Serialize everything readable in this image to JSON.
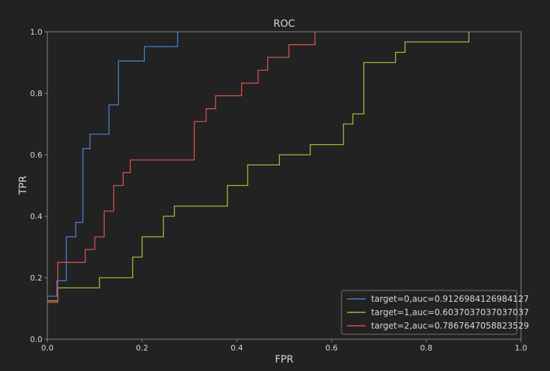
{
  "chart_data": {
    "type": "line",
    "title": "ROC",
    "xlabel": "FPR",
    "ylabel": "TPR",
    "xlim": [
      0,
      1
    ],
    "ylim": [
      0,
      1
    ],
    "xticks": [
      "0.0",
      "0.2",
      "0.4",
      "0.6",
      "0.8",
      "1.0"
    ],
    "yticks": [
      "0.0",
      "0.2",
      "0.4",
      "0.6",
      "0.8",
      "1.0"
    ],
    "grid": false,
    "legend_position": "lower-right",
    "series": [
      {
        "name": "target=0,auc=0.9126984126984127",
        "color": "#4c7fd6",
        "x": [
          0,
          0.02,
          0.02,
          0.04,
          0.04,
          0.06,
          0.06,
          0.075,
          0.075,
          0.09,
          0.09,
          0.13,
          0.13,
          0.15,
          0.15,
          0.205,
          0.205,
          0.275,
          0.275
        ],
        "y": [
          0.14,
          0.14,
          0.19,
          0.19,
          0.333,
          0.333,
          0.38,
          0.38,
          0.62,
          0.62,
          0.667,
          0.667,
          0.762,
          0.762,
          0.905,
          0.905,
          0.952,
          0.952,
          1.0
        ]
      },
      {
        "name": "target=1,auc=0.6037037037037037",
        "color": "#9dc23a",
        "x": [
          0,
          0.022,
          0.022,
          0.11,
          0.11,
          0.18,
          0.18,
          0.2,
          0.2,
          0.245,
          0.245,
          0.268,
          0.268,
          0.38,
          0.38,
          0.423,
          0.423,
          0.49,
          0.49,
          0.555,
          0.555,
          0.625,
          0.625,
          0.645,
          0.645,
          0.668,
          0.668,
          0.735,
          0.735,
          0.755,
          0.755,
          0.89,
          0.89
        ],
        "y": [
          0.125,
          0.125,
          0.167,
          0.167,
          0.2,
          0.2,
          0.267,
          0.267,
          0.333,
          0.333,
          0.4,
          0.4,
          0.433,
          0.433,
          0.5,
          0.5,
          0.567,
          0.567,
          0.6,
          0.6,
          0.633,
          0.633,
          0.7,
          0.7,
          0.733,
          0.733,
          0.9,
          0.9,
          0.933,
          0.933,
          0.967,
          0.967,
          1.0
        ]
      },
      {
        "name": "target=2,auc=0.7867647058823529",
        "color": "#d9534f",
        "x": [
          0,
          0.022,
          0.022,
          0.08,
          0.08,
          0.1,
          0.1,
          0.12,
          0.12,
          0.14,
          0.14,
          0.16,
          0.16,
          0.175,
          0.175,
          0.31,
          0.31,
          0.335,
          0.335,
          0.355,
          0.355,
          0.41,
          0.41,
          0.445,
          0.445,
          0.465,
          0.465,
          0.51,
          0.51,
          0.565,
          0.565
        ],
        "y": [
          0.12,
          0.12,
          0.25,
          0.25,
          0.292,
          0.292,
          0.333,
          0.333,
          0.417,
          0.417,
          0.5,
          0.5,
          0.542,
          0.542,
          0.583,
          0.583,
          0.708,
          0.708,
          0.75,
          0.75,
          0.792,
          0.792,
          0.833,
          0.833,
          0.875,
          0.875,
          0.917,
          0.917,
          0.958,
          0.958,
          1.0
        ]
      }
    ]
  }
}
